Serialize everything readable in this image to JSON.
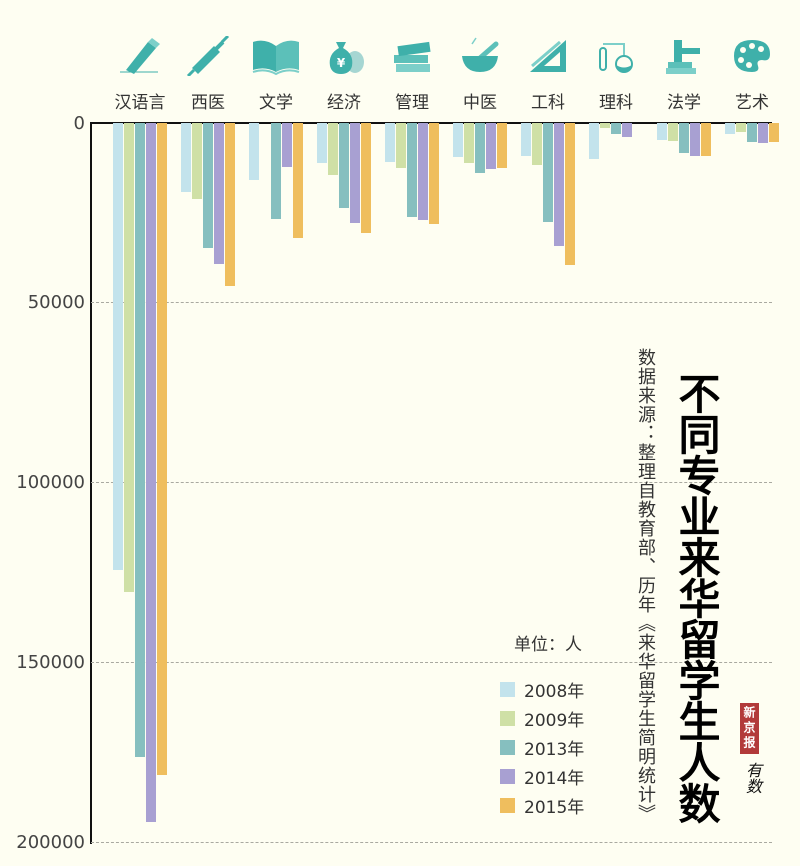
{
  "title": "不同专业来华留学生人数",
  "source": "数据来源：整理自教育部、历年《来华留学生简明统计》",
  "unit_label": "单位：人",
  "logo": {
    "brand": "新京报",
    "sub": "有数"
  },
  "colors": {
    "2008": "#c3e3ec",
    "2009": "#cfe0a6",
    "2013": "#86bfbf",
    "2014": "#a8a0d2",
    "2015": "#efbe5e",
    "icon": "#3fb0aa",
    "background": "#fefef2"
  },
  "y_ticks": [
    "0",
    "50000",
    "100000",
    "150000",
    "200000"
  ],
  "categories": [
    {
      "label": "汉语言",
      "icon": "pencil-icon"
    },
    {
      "label": "西医",
      "icon": "syringe-icon"
    },
    {
      "label": "文学",
      "icon": "book-icon"
    },
    {
      "label": "经济",
      "icon": "money-bag-icon"
    },
    {
      "label": "管理",
      "icon": "books-stack-icon"
    },
    {
      "label": "中医",
      "icon": "mortar-pestle-icon"
    },
    {
      "label": "工科",
      "icon": "set-square-icon"
    },
    {
      "label": "理科",
      "icon": "lab-flask-icon"
    },
    {
      "label": "法学",
      "icon": "gavel-icon"
    },
    {
      "label": "艺术",
      "icon": "palette-icon"
    }
  ],
  "legend": [
    {
      "label": "2008年",
      "key": "2008"
    },
    {
      "label": "2009年",
      "key": "2009"
    },
    {
      "label": "2013年",
      "key": "2013"
    },
    {
      "label": "2014年",
      "key": "2014"
    },
    {
      "label": "2015年",
      "key": "2015"
    }
  ],
  "chart_data": {
    "type": "bar",
    "title": "不同专业来华留学生人数",
    "subtitle": "数据来源：整理自教育部、历年《来华留学生简明统计》",
    "xlabel": "",
    "ylabel": "单位：人",
    "ylim": [
      0,
      200000
    ],
    "y_axis_inverted": true,
    "grid": true,
    "legend_position": "bottom-right",
    "categories": [
      "汉语言",
      "西医",
      "文学",
      "经济",
      "管理",
      "中医",
      "工科",
      "理科",
      "法学",
      "艺术"
    ],
    "series": [
      {
        "name": "2008年",
        "values": [
          124300,
          19100,
          15800,
          11200,
          10800,
          9400,
          9100,
          10000,
          4700,
          3100
        ]
      },
      {
        "name": "2009年",
        "values": [
          130300,
          21100,
          null,
          14500,
          12400,
          11000,
          11700,
          1400,
          5000,
          2500
        ]
      },
      {
        "name": "2013年",
        "values": [
          176100,
          34800,
          26700,
          23600,
          26200,
          13900,
          27500,
          3100,
          8300,
          5300
        ]
      },
      {
        "name": "2014年",
        "values": [
          194200,
          39200,
          12200,
          27800,
          26900,
          12900,
          34200,
          3900,
          9100,
          5600
        ]
      },
      {
        "name": "2015年",
        "values": [
          181100,
          45300,
          32000,
          30600,
          28100,
          12400,
          39400,
          null,
          9100,
          5300
        ]
      }
    ]
  }
}
